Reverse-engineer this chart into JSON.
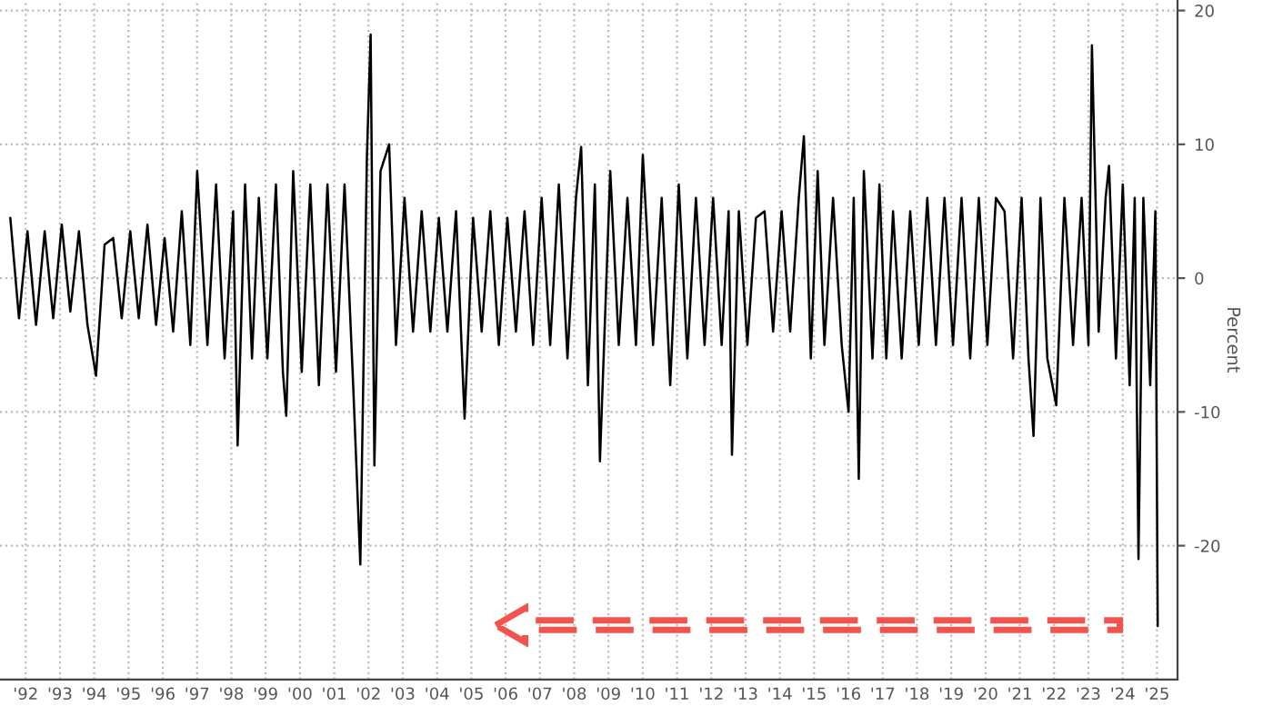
{
  "chart_data": {
    "type": "line",
    "ylabel": "Percent",
    "series": [
      {
        "color": "#000000",
        "x": [
          "1992-01-19",
          "1992-04-20",
          "1992-07-20",
          "1992-10-19",
          "1993-01-19",
          "1993-04-20",
          "1993-07-20",
          "1993-10-19",
          "1994-01-19",
          "1994-04-20",
          "1994-07-20",
          "1994-10-19",
          "1995-01-19",
          "1995-04-20",
          "1995-07-20",
          "1995-10-19",
          "1996-01-19",
          "1996-04-20",
          "1996-07-20",
          "1996-10-19",
          "1997-01-19",
          "1997-04-20",
          "1997-07-02",
          "1997-10-19",
          "1998-01-19",
          "1998-04-20",
          "1998-07-20",
          "1998-09-06",
          "1998-11-24",
          "1999-02-06",
          "1999-04-20",
          "1999-07-20",
          "1999-10-19",
          "2000-01-01",
          "2000-02-06",
          "2000-04-20",
          "2000-07-20",
          "2000-10-19",
          "2001-01-19",
          "2001-04-20",
          "2001-07-20",
          "2001-10-19",
          "2002-01-19",
          "2002-04-05",
          "2002-06-14",
          "2002-07-24",
          "2002-09-02",
          "2002-11-06",
          "2003-02-06",
          "2003-04-20",
          "2003-07-20",
          "2003-10-19",
          "2004-01-19",
          "2004-04-20",
          "2004-07-20",
          "2004-10-19",
          "2005-01-19",
          "2005-04-20",
          "2005-07-20",
          "2005-10-19",
          "2006-01-19",
          "2006-04-20",
          "2006-07-20",
          "2006-10-19",
          "2007-01-19",
          "2007-04-20",
          "2007-07-20",
          "2007-10-19",
          "2008-01-19",
          "2008-04-20",
          "2008-07-20",
          "2008-09-13",
          "2008-11-24",
          "2009-02-06",
          "2009-04-01",
          "2009-07-20",
          "2009-10-19",
          "2010-01-19",
          "2010-04-20",
          "2010-07-02",
          "2010-10-19",
          "2011-01-19",
          "2011-04-20",
          "2011-07-20",
          "2011-10-19",
          "2012-01-19",
          "2012-04-20",
          "2012-07-20",
          "2012-10-19",
          "2013-01-01",
          "2013-02-06",
          "2013-04-20",
          "2013-07-20",
          "2013-10-19",
          "2014-01-19",
          "2014-04-20",
          "2014-07-20",
          "2014-10-19",
          "2015-01-19",
          "2015-03-14",
          "2015-05-27",
          "2015-08-08",
          "2015-10-19",
          "2016-01-19",
          "2016-04-20",
          "2016-07-02",
          "2016-08-26",
          "2016-10-19",
          "2016-12-12",
          "2017-03-14",
          "2017-05-27",
          "2017-08-08",
          "2017-10-19",
          "2018-01-19",
          "2018-04-20",
          "2018-07-20",
          "2018-10-19",
          "2019-01-19",
          "2019-04-20",
          "2019-07-20",
          "2019-10-19",
          "2020-01-19",
          "2020-04-20",
          "2020-07-20",
          "2020-10-19",
          "2021-01-19",
          "2021-04-20",
          "2021-07-20",
          "2021-10-01",
          "2021-11-24",
          "2022-02-06",
          "2022-04-20",
          "2022-07-24",
          "2022-10-19",
          "2023-01-19",
          "2023-04-20",
          "2023-07-02",
          "2023-08-08",
          "2023-10-19",
          "2024-01-01",
          "2024-02-06",
          "2024-04-20",
          "2024-07-02",
          "2024-09-13",
          "2024-11-06",
          "2024-12-16",
          "2025-02-06",
          "2025-04-20",
          "2025-06-14",
          "2025-07-09"
        ],
        "values": [
          4.5,
          -3,
          3.5,
          -3.5,
          3.5,
          -3,
          4,
          -2.5,
          3.5,
          -3.5,
          -7.3,
          2.5,
          3,
          -3,
          3.5,
          -3,
          4,
          -3.5,
          3,
          -4,
          5,
          -5,
          8,
          -5,
          7,
          -6,
          5,
          -12.5,
          7,
          -6,
          6,
          -6,
          7,
          -7,
          -10.3,
          8,
          -7,
          7,
          -8,
          7,
          -7,
          7,
          -8,
          -21.4,
          9,
          18.2,
          -14,
          8,
          10,
          -5,
          6,
          -4,
          5,
          -4,
          4.5,
          -4,
          5,
          -10.5,
          4.5,
          -4,
          5,
          -5,
          4.5,
          -4,
          5,
          -5,
          6,
          -5,
          7,
          -6,
          6,
          9.8,
          -8,
          7,
          -13.7,
          8,
          -5,
          6,
          -5,
          9.2,
          -5,
          6,
          -8,
          7,
          -6,
          6,
          -5,
          6,
          -5,
          5,
          -13.2,
          5,
          -5,
          4.5,
          5,
          -4,
          5,
          -4,
          6,
          10.6,
          -6,
          8,
          -5,
          6,
          -5,
          -10,
          6,
          -15,
          8,
          -6,
          7,
          -6,
          5,
          -6,
          5,
          -5,
          6,
          -5,
          6,
          -5,
          6,
          -6,
          6,
          -5,
          6,
          5,
          -6,
          6,
          -6,
          -11.8,
          6,
          -6,
          -9.5,
          6,
          -5,
          6,
          -5,
          17.4,
          -4,
          6,
          8.4,
          -6,
          7,
          -8,
          6,
          -21,
          6,
          -8,
          5,
          -26
        ]
      }
    ],
    "xlim": [
      "1991-10-01",
      "2026-02-05"
    ],
    "ylim": [
      -30,
      20.8
    ],
    "xticks": [
      {
        "value": "1992-07-01",
        "label": "'92"
      },
      {
        "value": "1993-07-01",
        "label": "'93"
      },
      {
        "value": "1994-07-01",
        "label": "'94"
      },
      {
        "value": "1995-07-01",
        "label": "'95"
      },
      {
        "value": "1996-07-01",
        "label": "'96"
      },
      {
        "value": "1997-07-01",
        "label": "'97"
      },
      {
        "value": "1998-07-01",
        "label": "'98"
      },
      {
        "value": "1999-07-01",
        "label": "'99"
      },
      {
        "value": "2000-07-01",
        "label": "'00"
      },
      {
        "value": "2001-07-01",
        "label": "'01"
      },
      {
        "value": "2002-07-01",
        "label": "'02"
      },
      {
        "value": "2003-07-01",
        "label": "'03"
      },
      {
        "value": "2004-07-01",
        "label": "'04"
      },
      {
        "value": "2005-07-01",
        "label": "'05"
      },
      {
        "value": "2006-07-01",
        "label": "'06"
      },
      {
        "value": "2007-07-01",
        "label": "'07"
      },
      {
        "value": "2008-07-01",
        "label": "'08"
      },
      {
        "value": "2009-07-01",
        "label": "'09"
      },
      {
        "value": "2010-07-01",
        "label": "'10"
      },
      {
        "value": "2011-07-01",
        "label": "'11"
      },
      {
        "value": "2012-07-01",
        "label": "'12"
      },
      {
        "value": "2013-07-01",
        "label": "'13"
      },
      {
        "value": "2014-07-01",
        "label": "'14"
      },
      {
        "value": "2015-07-01",
        "label": "'15"
      },
      {
        "value": "2016-07-01",
        "label": "'16"
      },
      {
        "value": "2017-07-01",
        "label": "'17"
      },
      {
        "value": "2018-07-01",
        "label": "'18"
      },
      {
        "value": "2019-07-01",
        "label": "'19"
      },
      {
        "value": "2020-07-01",
        "label": "'20"
      },
      {
        "value": "2021-07-01",
        "label": "'21"
      },
      {
        "value": "2022-07-01",
        "label": "'22"
      },
      {
        "value": "2023-07-01",
        "label": "'23"
      },
      {
        "value": "2024-07-01",
        "label": "'24"
      },
      {
        "value": "2025-07-01",
        "label": "'25"
      }
    ],
    "yticks": [
      -20,
      -10,
      0,
      10,
      20
    ],
    "grid": true
  }
}
